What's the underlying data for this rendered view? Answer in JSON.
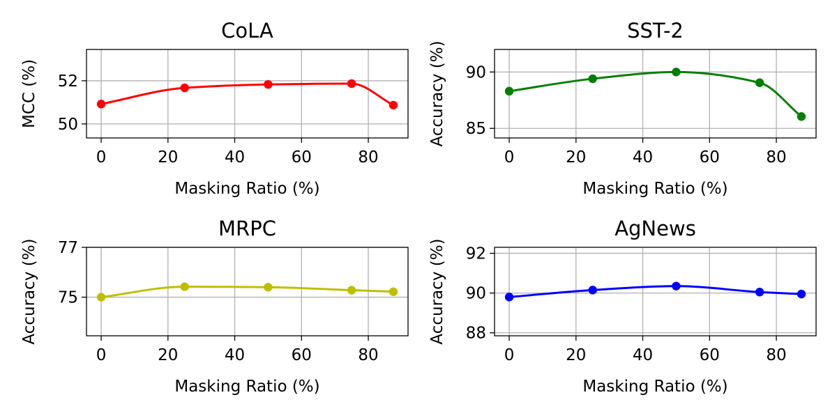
{
  "chart_data": [
    {
      "type": "line",
      "title": "CoLA",
      "xlabel": "Masking Ratio (%)",
      "ylabel": "MCC (%)",
      "color": "#ff0000",
      "x": [
        0,
        25,
        50,
        75,
        87.5
      ],
      "values": [
        50.92,
        51.67,
        51.83,
        51.87,
        50.87
      ],
      "xlim": [
        -4.4,
        91.9
      ],
      "ylim": [
        49.35,
        53.45
      ],
      "xticks": [
        0,
        20,
        40,
        60,
        80
      ],
      "xtick_labels": [
        "0",
        "20",
        "40",
        "60",
        "80"
      ],
      "yticks": [
        50,
        52
      ],
      "ytick_labels": [
        "50",
        "52"
      ],
      "grid": true
    },
    {
      "type": "line",
      "title": "SST-2",
      "xlabel": "Masking Ratio (%)",
      "ylabel": "Accuracy (%)",
      "color": "#008000",
      "x": [
        0,
        25,
        50,
        75,
        87.5
      ],
      "values": [
        88.3,
        89.4,
        90.0,
        89.05,
        86.05
      ],
      "xlim": [
        -4.4,
        91.9
      ],
      "ylim": [
        84.15,
        92.0
      ],
      "xticks": [
        0,
        20,
        40,
        60,
        80
      ],
      "xtick_labels": [
        "0",
        "20",
        "40",
        "60",
        "80"
      ],
      "yticks": [
        85,
        90
      ],
      "ytick_labels": [
        "85",
        "90"
      ],
      "grid": true
    },
    {
      "type": "line",
      "title": "MRPC",
      "xlabel": "Masking Ratio (%)",
      "ylabel": "Accuracy (%)",
      "color": "#bfbf00",
      "x": [
        0,
        25,
        50,
        75,
        87.5
      ],
      "values": [
        75.0,
        75.42,
        75.4,
        75.28,
        75.22
      ],
      "xlim": [
        -4.4,
        91.9
      ],
      "ylim": [
        73.45,
        77.0
      ],
      "xticks": [
        0,
        20,
        40,
        60,
        80
      ],
      "xtick_labels": [
        "0",
        "20",
        "40",
        "60",
        "80"
      ],
      "yticks": [
        75,
        77
      ],
      "ytick_labels": [
        "75",
        "77"
      ],
      "grid": true
    },
    {
      "type": "line",
      "title": "AgNews",
      "xlabel": "Masking Ratio (%)",
      "ylabel": "Accuracy (%)",
      "color": "#0000ff",
      "x": [
        0,
        25,
        50,
        75,
        87.5
      ],
      "values": [
        89.8,
        90.15,
        90.35,
        90.05,
        89.95
      ],
      "xlim": [
        -4.4,
        91.9
      ],
      "ylim": [
        87.85,
        92.3
      ],
      "xticks": [
        0,
        20,
        40,
        60,
        80
      ],
      "xtick_labels": [
        "0",
        "20",
        "40",
        "60",
        "80"
      ],
      "yticks": [
        88,
        90,
        92
      ],
      "ytick_labels": [
        "88",
        "90",
        "92"
      ],
      "grid": true
    }
  ]
}
